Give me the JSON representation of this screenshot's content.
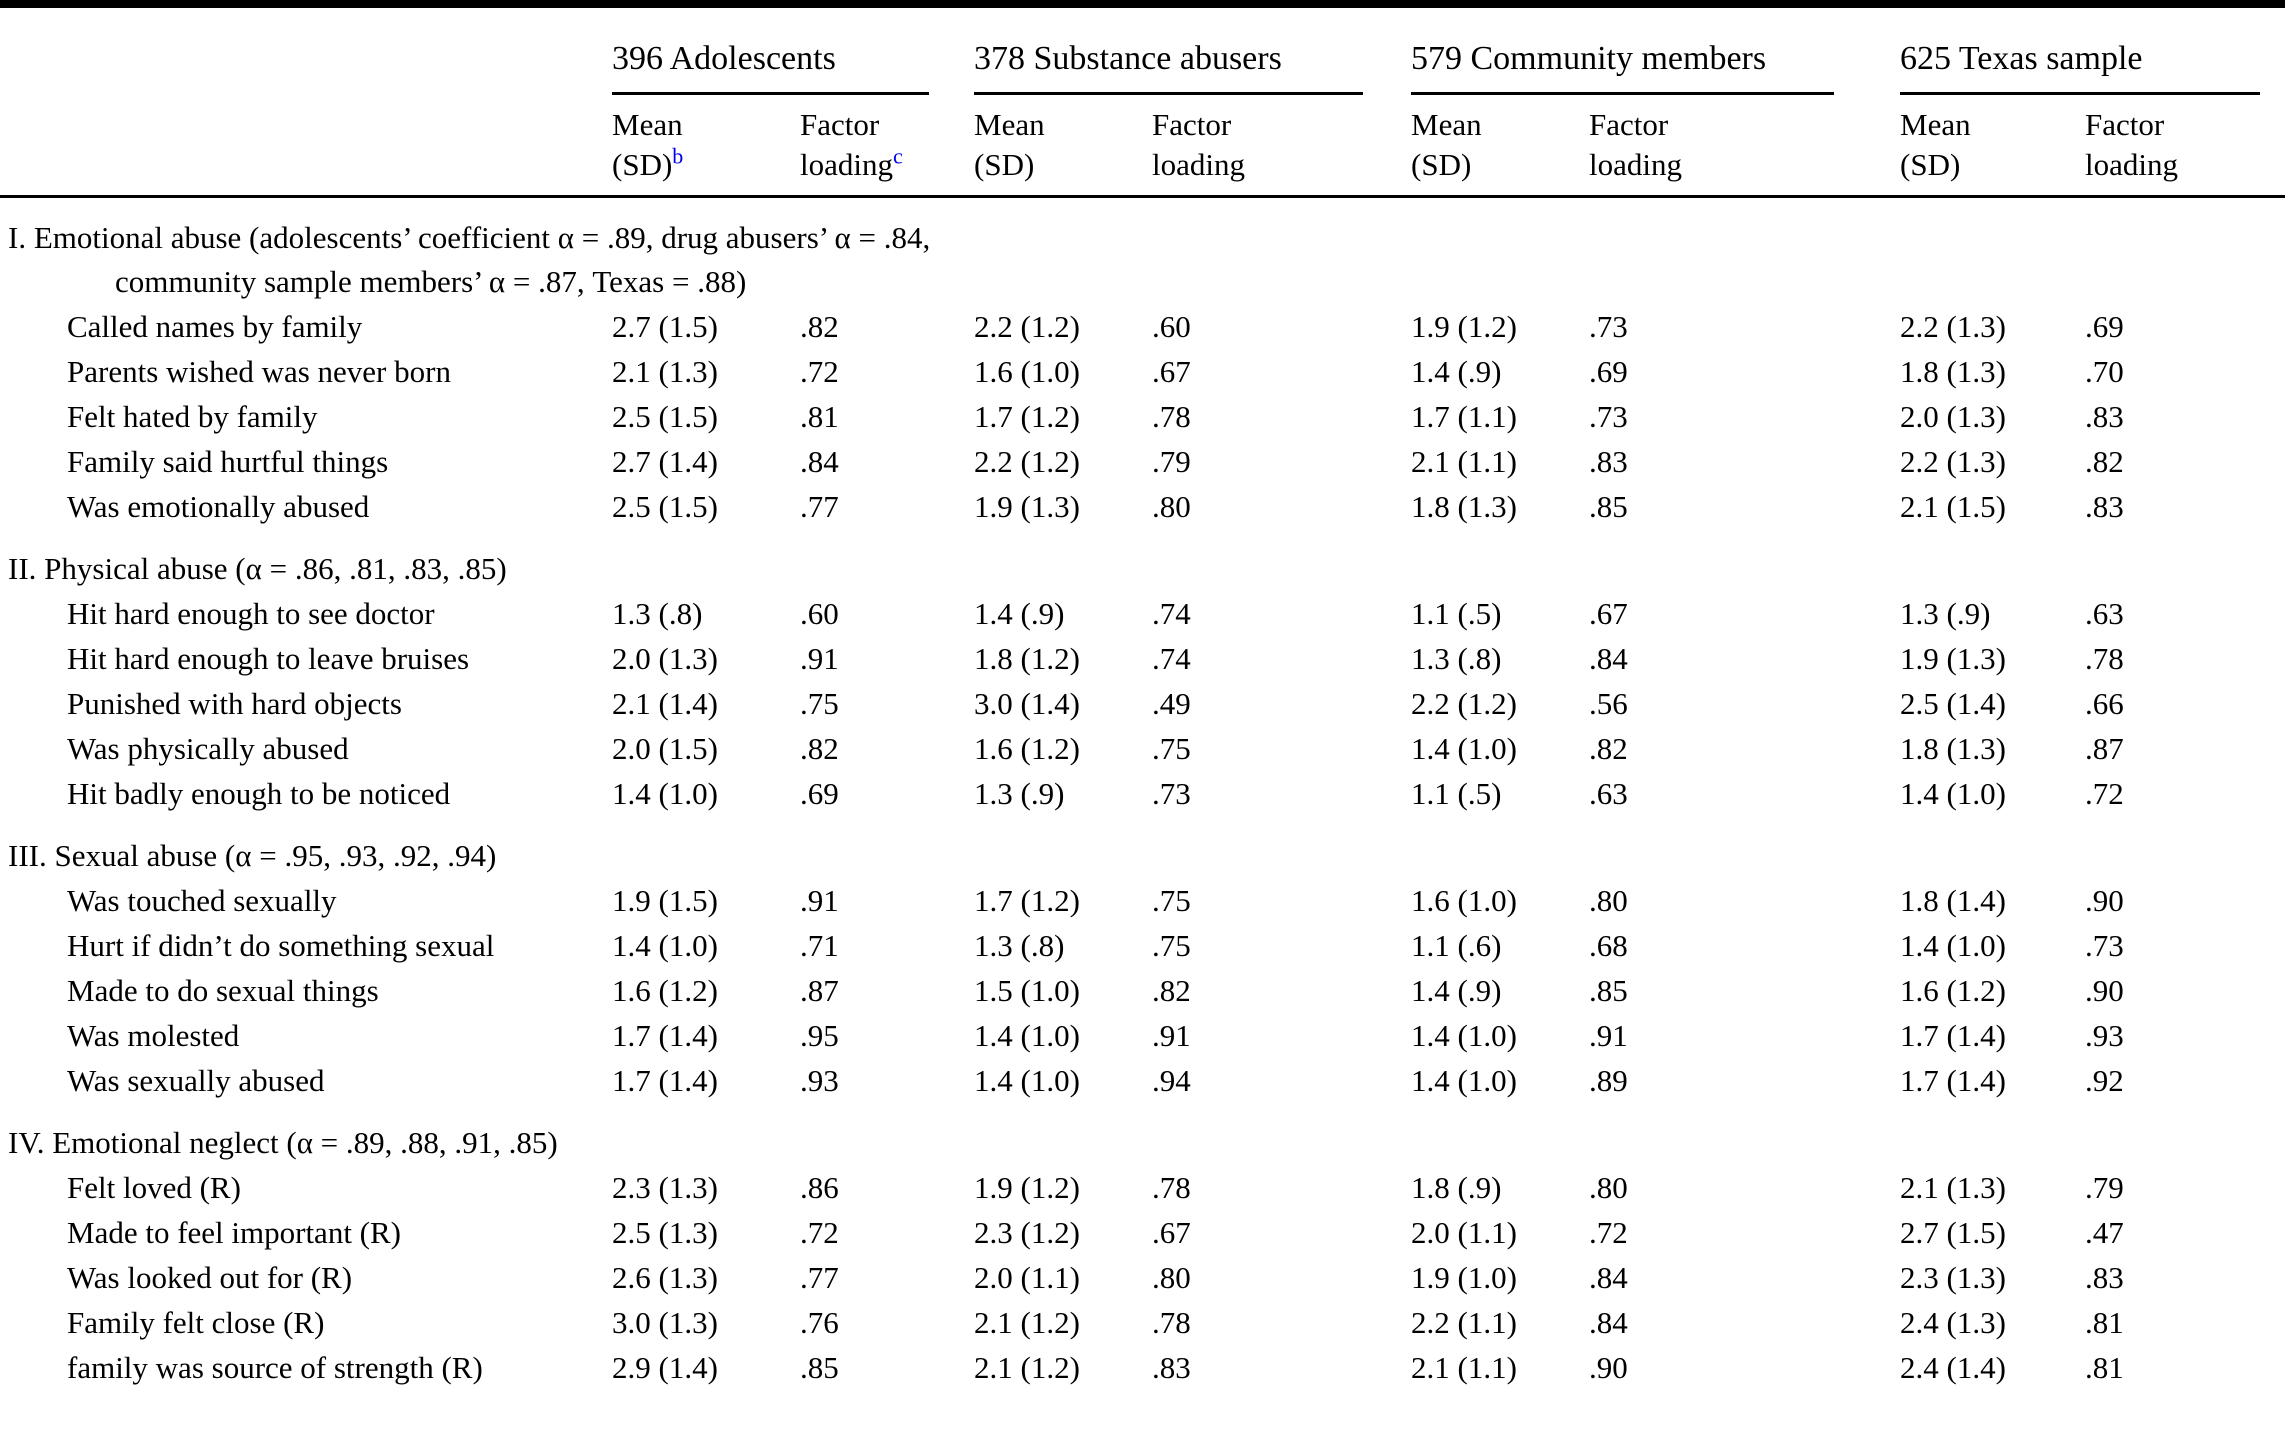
{
  "table": {
    "groups": [
      {
        "key": "adolescents",
        "label": "396 Adolescents",
        "mean_line1": "Mean",
        "mean_line2": "(SD)",
        "mean_footnote": "b",
        "factor_line1": "Factor",
        "factor_line2": "loading",
        "factor_footnote": "c"
      },
      {
        "key": "substance-abusers",
        "label": "378 Substance abusers",
        "mean_line1": "Mean",
        "mean_line2": "(SD)",
        "mean_footnote": "",
        "factor_line1": "Factor",
        "factor_line2": "loading",
        "factor_footnote": ""
      },
      {
        "key": "community-members",
        "label": "579 Community members",
        "mean_line1": "Mean",
        "mean_line2": "(SD)",
        "mean_footnote": "",
        "factor_line1": "Factor",
        "factor_line2": "loading",
        "factor_footnote": ""
      },
      {
        "key": "texas-sample",
        "label": "625 Texas sample",
        "mean_line1": "Mean",
        "mean_line2": "(SD)",
        "mean_footnote": "",
        "factor_line1": "Factor",
        "factor_line2": "loading",
        "factor_footnote": ""
      }
    ],
    "sections": [
      {
        "heading_line1": "I. Emotional abuse (adolescents’ coefficient α = .89, drug abusers’ α = .84,",
        "heading_line2": "community sample members’ α = .87, Texas = .88)",
        "rows": [
          {
            "label": "Called names by family",
            "values": [
              "2.7 (1.5)",
              ".82",
              "2.2 (1.2)",
              ".60",
              "1.9 (1.2)",
              ".73",
              "2.2 (1.3)",
              ".69"
            ]
          },
          {
            "label": "Parents wished was never born",
            "values": [
              "2.1 (1.3)",
              ".72",
              "1.6 (1.0)",
              ".67",
              "1.4 (.9)",
              ".69",
              "1.8 (1.3)",
              ".70"
            ]
          },
          {
            "label": "Felt hated by family",
            "values": [
              "2.5 (1.5)",
              ".81",
              "1.7 (1.2)",
              ".78",
              "1.7 (1.1)",
              ".73",
              "2.0 (1.3)",
              ".83"
            ]
          },
          {
            "label": "Family said hurtful things",
            "values": [
              "2.7 (1.4)",
              ".84",
              "2.2 (1.2)",
              ".79",
              "2.1 (1.1)",
              ".83",
              "2.2 (1.3)",
              ".82"
            ]
          },
          {
            "label": "Was emotionally abused",
            "values": [
              "2.5 (1.5)",
              ".77",
              "1.9 (1.3)",
              ".80",
              "1.8 (1.3)",
              ".85",
              "2.1 (1.5)",
              ".83"
            ]
          }
        ]
      },
      {
        "heading_line1": "II. Physical abuse (α = .86, .81, .83, .85)",
        "heading_line2": "",
        "rows": [
          {
            "label": "Hit hard enough to see doctor",
            "values": [
              "1.3 (.8)",
              ".60",
              "1.4 (.9)",
              ".74",
              "1.1 (.5)",
              ".67",
              "1.3 (.9)",
              ".63"
            ]
          },
          {
            "label": "Hit hard enough to leave bruises",
            "values": [
              "2.0 (1.3)",
              ".91",
              "1.8 (1.2)",
              ".74",
              "1.3 (.8)",
              ".84",
              "1.9 (1.3)",
              ".78"
            ]
          },
          {
            "label": "Punished with hard objects",
            "values": [
              "2.1 (1.4)",
              ".75",
              "3.0 (1.4)",
              ".49",
              "2.2 (1.2)",
              ".56",
              "2.5 (1.4)",
              ".66"
            ]
          },
          {
            "label": "Was physically abused",
            "values": [
              "2.0 (1.5)",
              ".82",
              "1.6 (1.2)",
              ".75",
              "1.4 (1.0)",
              ".82",
              "1.8 (1.3)",
              ".87"
            ]
          },
          {
            "label": "Hit badly enough to be noticed",
            "values": [
              "1.4 (1.0)",
              ".69",
              "1.3 (.9)",
              ".73",
              "1.1 (.5)",
              ".63",
              "1.4 (1.0)",
              ".72"
            ]
          }
        ]
      },
      {
        "heading_line1": "III. Sexual abuse (α = .95, .93, .92, .94)",
        "heading_line2": "",
        "rows": [
          {
            "label": "Was touched sexually",
            "values": [
              "1.9 (1.5)",
              ".91",
              "1.7 (1.2)",
              ".75",
              "1.6 (1.0)",
              ".80",
              "1.8 (1.4)",
              ".90"
            ]
          },
          {
            "label": "Hurt if didn’t do something sexual",
            "values": [
              "1.4 (1.0)",
              ".71",
              "1.3 (.8)",
              ".75",
              "1.1 (.6)",
              ".68",
              "1.4 (1.0)",
              ".73"
            ]
          },
          {
            "label": "Made to do sexual things",
            "values": [
              "1.6 (1.2)",
              ".87",
              "1.5 (1.0)",
              ".82",
              "1.4 (.9)",
              ".85",
              "1.6 (1.2)",
              ".90"
            ]
          },
          {
            "label": "Was molested",
            "values": [
              "1.7 (1.4)",
              ".95",
              "1.4 (1.0)",
              ".91",
              "1.4 (1.0)",
              ".91",
              "1.7 (1.4)",
              ".93"
            ]
          },
          {
            "label": "Was sexually abused",
            "values": [
              "1.7 (1.4)",
              ".93",
              "1.4 (1.0)",
              ".94",
              "1.4 (1.0)",
              ".89",
              "1.7 (1.4)",
              ".92"
            ]
          }
        ]
      },
      {
        "heading_line1": "IV. Emotional neglect (α = .89, .88, .91, .85)",
        "heading_line2": "",
        "rows": [
          {
            "label": "Felt loved (R)",
            "values": [
              "2.3 (1.3)",
              ".86",
              "1.9 (1.2)",
              ".78",
              "1.8 (.9)",
              ".80",
              "2.1 (1.3)",
              ".79"
            ]
          },
          {
            "label": "Made to feel important (R)",
            "values": [
              "2.5 (1.3)",
              ".72",
              "2.3 (1.2)",
              ".67",
              "2.0 (1.1)",
              ".72",
              "2.7 (1.5)",
              ".47"
            ]
          },
          {
            "label": "Was looked out for (R)",
            "values": [
              "2.6 (1.3)",
              ".77",
              "2.0 (1.1)",
              ".80",
              "1.9 (1.0)",
              ".84",
              "2.3 (1.3)",
              ".83"
            ]
          },
          {
            "label": "Family felt close (R)",
            "values": [
              "3.0 (1.3)",
              ".76",
              "2.1 (1.2)",
              ".78",
              "2.2 (1.1)",
              ".84",
              "2.4 (1.3)",
              ".81"
            ]
          },
          {
            "label": "family was source of strength (R)",
            "values": [
              "2.9 (1.4)",
              ".85",
              "2.1 (1.2)",
              ".83",
              "2.1 (1.1)",
              ".90",
              "2.4 (1.4)",
              ".81"
            ]
          }
        ]
      }
    ]
  },
  "accent_colors": {
    "footnote_link_blue": "#0000ee",
    "rule_black": "#000000"
  }
}
